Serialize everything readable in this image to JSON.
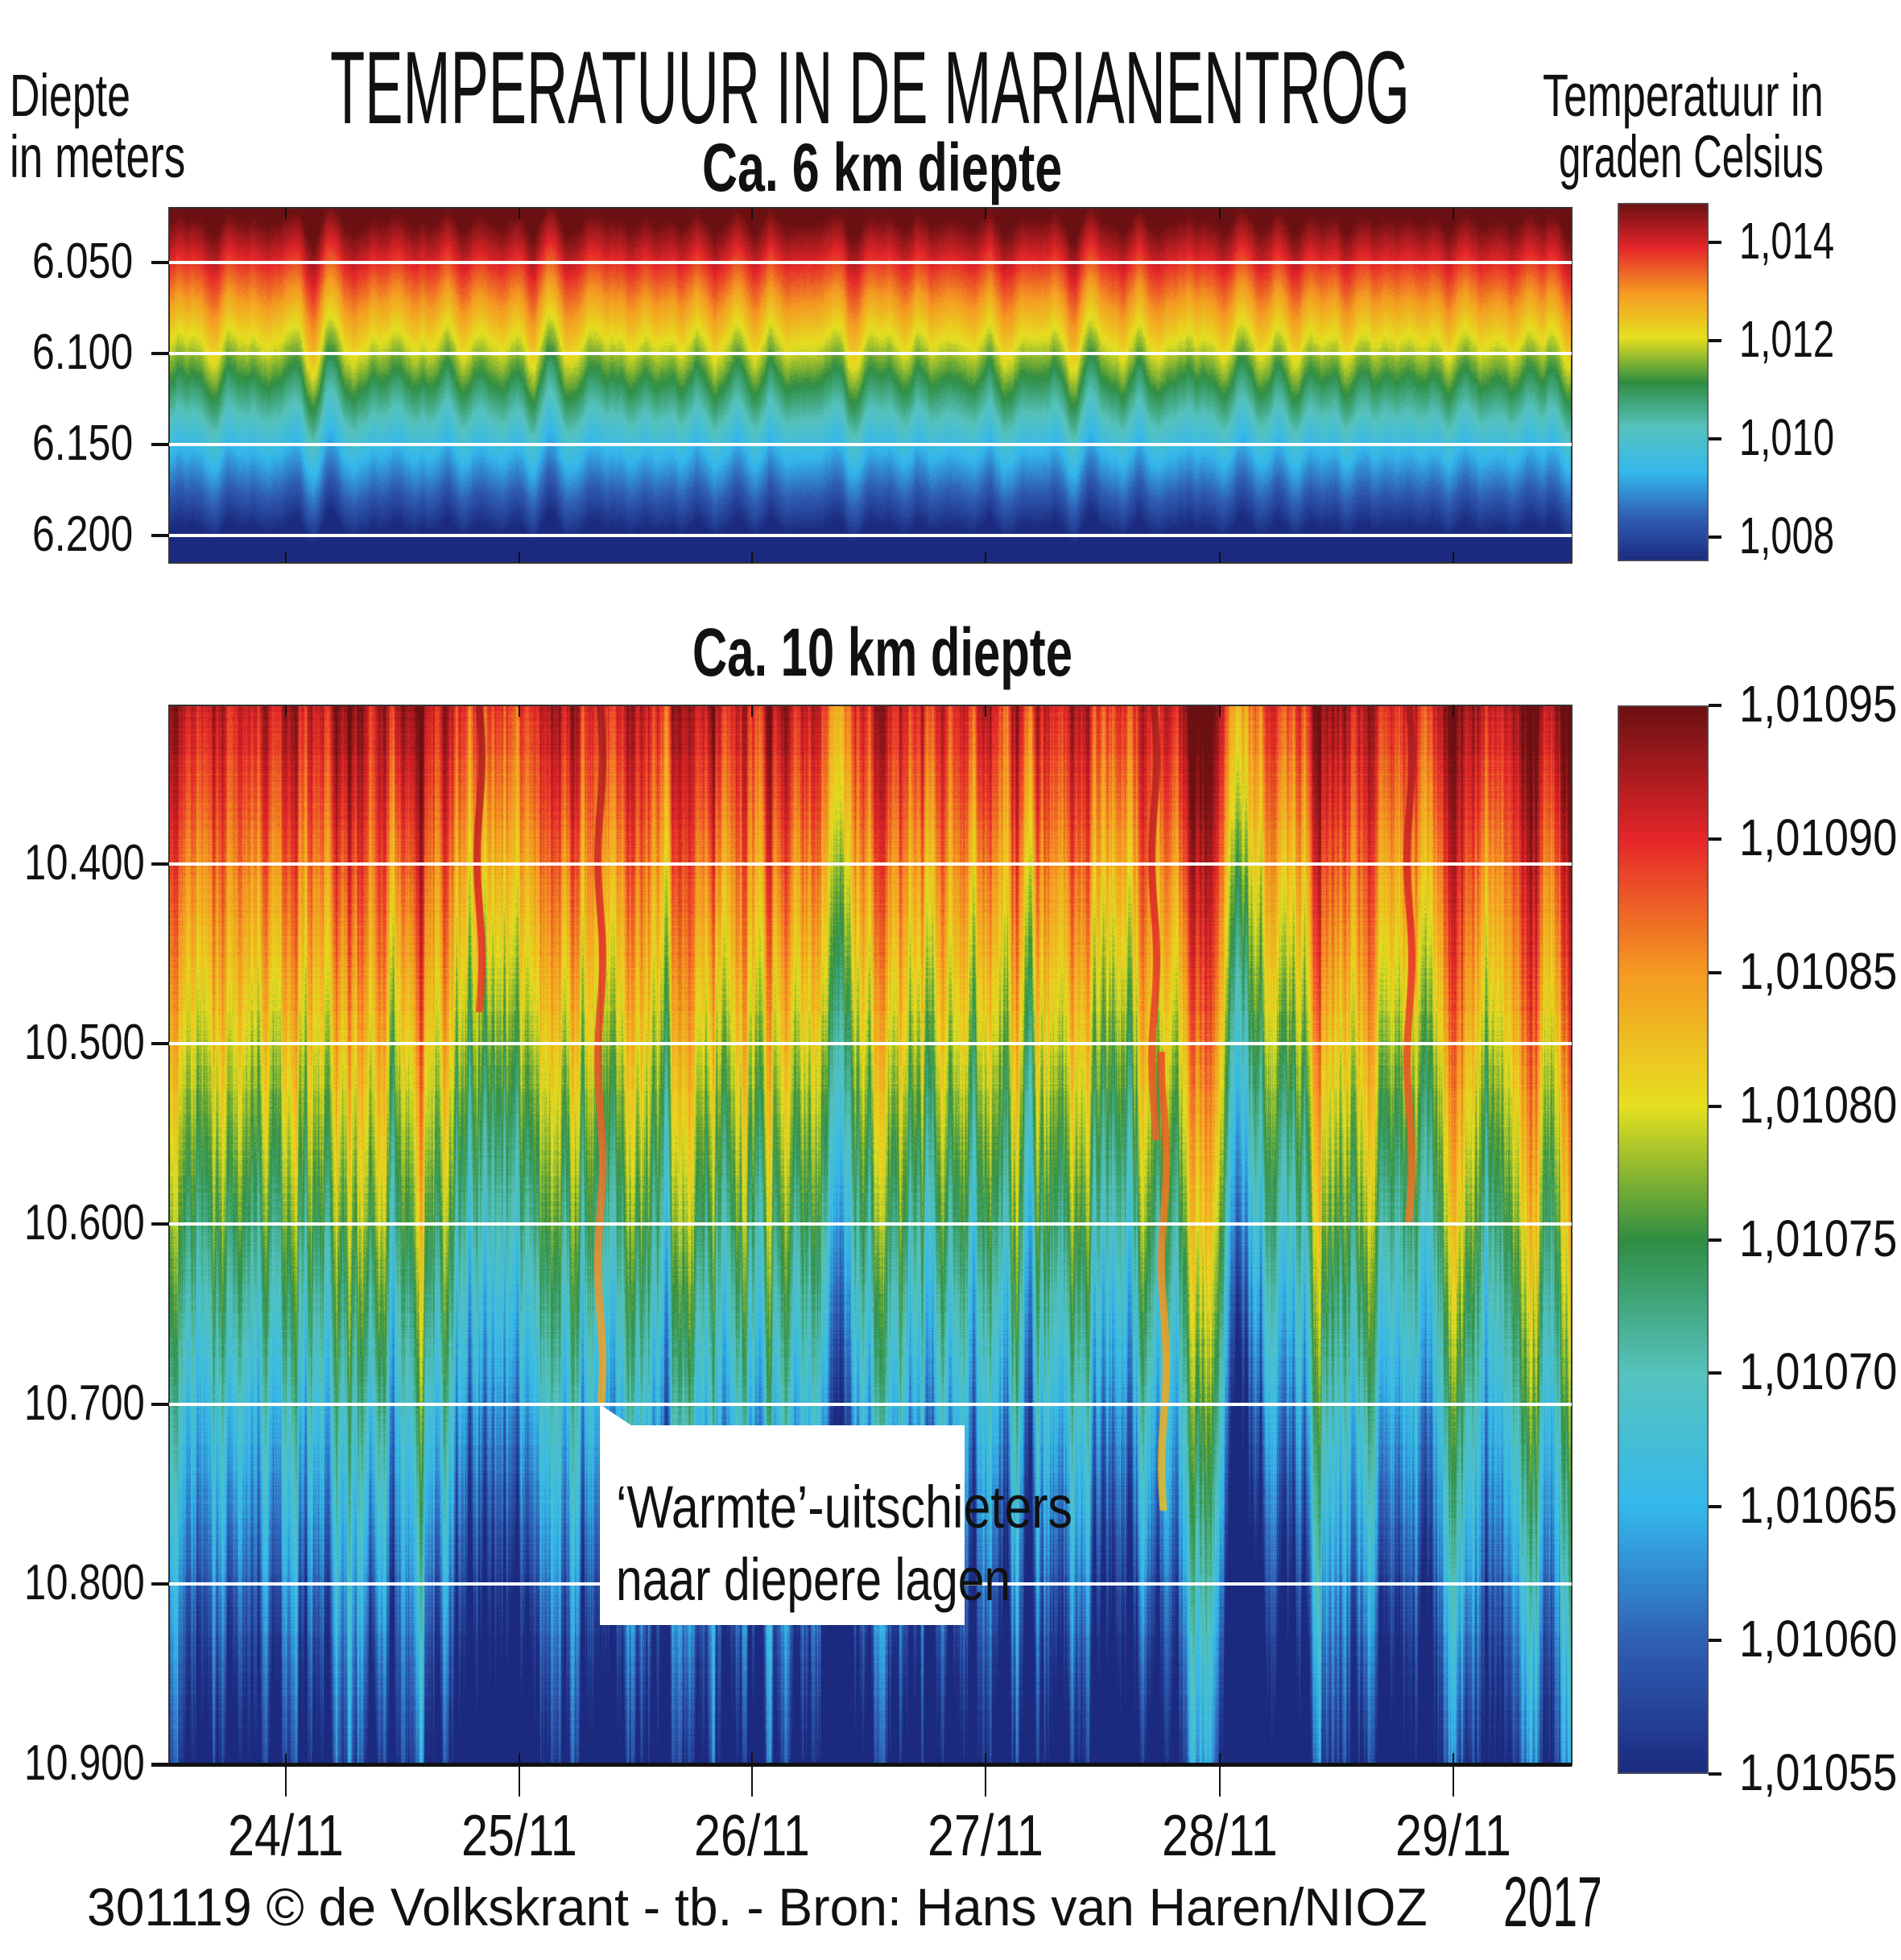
{
  "title": "TEMPERATUUR IN DE MARIANENTROG",
  "y_axis_label": [
    "Diepte",
    "in meters"
  ],
  "colorbar_label": [
    "Temperatuur in",
    "graden Celsius"
  ],
  "footer": {
    "credit": "301119 © de Volkskrant - tb. - Bron: Hans van Haren/NIOZ",
    "year": "2017"
  },
  "chart_data": [
    {
      "type": "heatmap",
      "title": "Ca. 6 km diepte",
      "x_tick_labels": [
        "24/11",
        "25/11",
        "26/11",
        "27/11",
        "28/11",
        "29/11"
      ],
      "y_tick_labels": [
        "6.050",
        "6.100",
        "6.150",
        "6.200"
      ],
      "y_ticks": [
        6050,
        6100,
        6150,
        6200
      ],
      "ylim": [
        6020,
        6215
      ],
      "y_inverted": true,
      "grid": "horizontal white lines at y ticks",
      "colorbar": {
        "tick_labels": [
          "1,014",
          "1,012",
          "1,010",
          "1,008"
        ],
        "ticks": [
          1.014,
          1.012,
          1.01,
          1.008
        ],
        "range": [
          1.0075,
          1.0148
        ],
        "colormap": [
          "#1b2a7e",
          "#2f5fb5",
          "#34b8ec",
          "#56c3be",
          "#2f8d42",
          "#e6e020",
          "#f59a22",
          "#e5262a",
          "#6b1012"
        ]
      }
    },
    {
      "type": "heatmap",
      "title": "Ca. 10 km diepte",
      "x_tick_labels": [
        "24/11",
        "25/11",
        "26/11",
        "27/11",
        "28/11",
        "29/11"
      ],
      "y_tick_labels": [
        "10.400",
        "10.500",
        "10.600",
        "10.700",
        "10.800",
        "10.900"
      ],
      "y_ticks": [
        10400,
        10500,
        10600,
        10700,
        10800,
        10900
      ],
      "ylim": [
        10312,
        10900
      ],
      "y_inverted": true,
      "grid": "horizontal white lines at y ticks",
      "annotation": [
        "‘Warmte’-uitschieters",
        "naar diepere lagen"
      ],
      "colorbar": {
        "tick_labels": [
          "1,01095",
          "1,01090",
          "1,01085",
          "1,01080",
          "1,01075",
          "1,01070",
          "1,01065",
          "1,01060",
          "1,01055"
        ],
        "ticks": [
          1.01095,
          1.0109,
          1.01085,
          1.0108,
          1.01075,
          1.0107,
          1.01065,
          1.0106,
          1.01055
        ],
        "range": [
          1.01055,
          1.01095
        ],
        "colormap": [
          "#1b2a7e",
          "#2f5fb5",
          "#34b8ec",
          "#56c3be",
          "#2f8d42",
          "#e6e020",
          "#f59a22",
          "#e5262a",
          "#6b1012"
        ]
      }
    }
  ]
}
